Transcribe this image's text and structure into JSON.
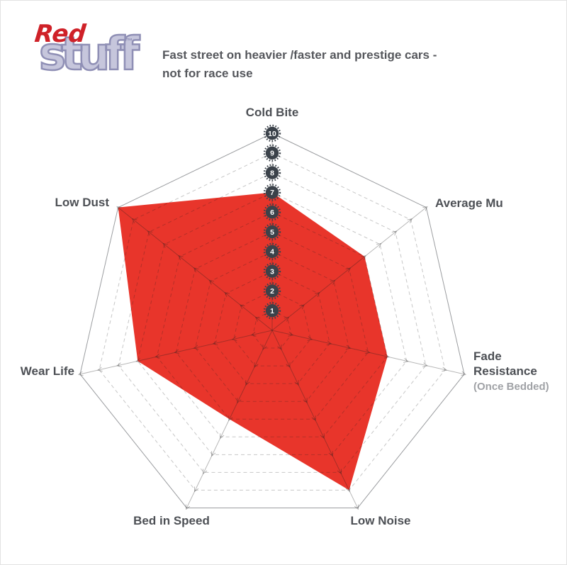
{
  "logo": {
    "red": "Red",
    "stuff": "stuff",
    "trademark": "™",
    "red_color": "#cf2128",
    "stuff_fill": "#c6c6dc",
    "stuff_outline": "#8f8fb5"
  },
  "header": {
    "description_line1": "Fast street on heavier /faster and prestige cars -",
    "description_line2": "not for race use",
    "text_color": "#55575c"
  },
  "chart_data": {
    "type": "radar",
    "axis_count": 7,
    "axes": [
      {
        "label": "Cold Bite",
        "value": 7
      },
      {
        "label": "Average Mu",
        "value": 6
      },
      {
        "label": "Fade Resistance",
        "sublabel": "(Once Bedded)",
        "value": 6
      },
      {
        "label": "Low Noise",
        "value": 9
      },
      {
        "label": "Bed in Speed",
        "value": 5
      },
      {
        "label": "Wear Life",
        "value": 7
      },
      {
        "label": "Low Dust",
        "value": 10
      }
    ],
    "scale": {
      "min": 1,
      "max": 10,
      "ticks": [
        10,
        9,
        8,
        7,
        6,
        5,
        4,
        3,
        2,
        1
      ]
    },
    "legend": false,
    "grid": "dashed concentric heptagon rings with radial spokes and outward chevron ticks",
    "colors": {
      "series_fill": "#e8352b",
      "grid": "rgba(30,30,30,0.25)",
      "spoke": "rgba(30,30,30,0.32)",
      "outer_ring": "#9b9da0",
      "badge": "#3b424a",
      "badge_number": "#ffffff",
      "label": "#4d5055",
      "sublabel": "#a0a2a6"
    }
  }
}
